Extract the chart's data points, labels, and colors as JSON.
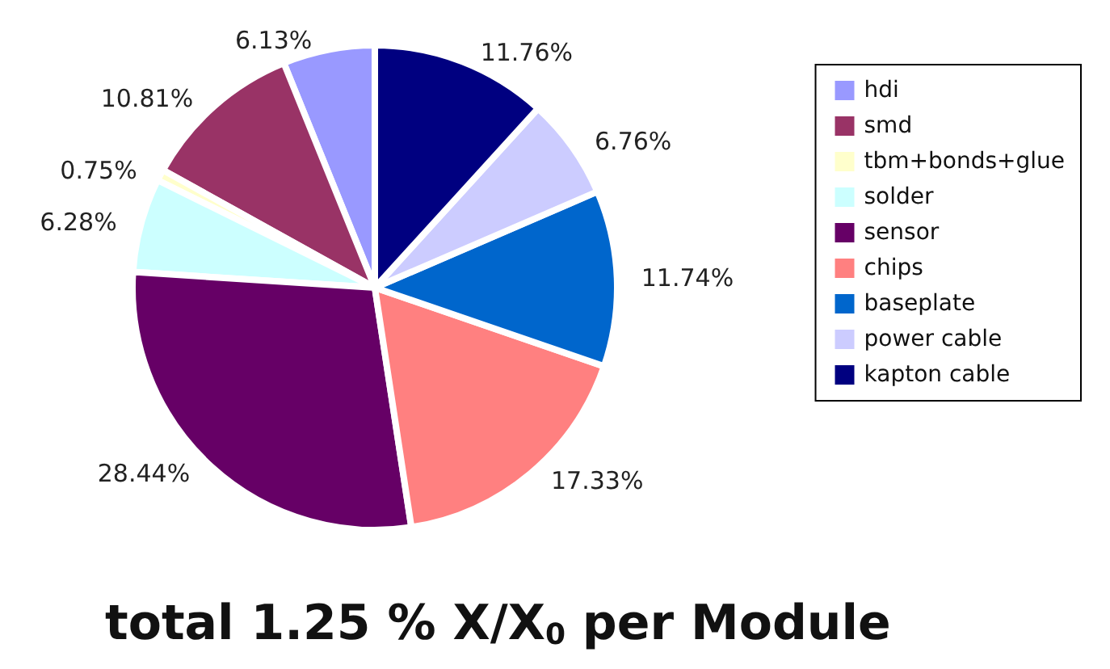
{
  "chart_data": {
    "type": "pie",
    "title": "total 1.25 % X/X$_{0}$ per Module",
    "categories": [
      "hdi",
      "smd",
      "tbm+bonds+glue",
      "solder",
      "sensor",
      "chips",
      "baseplate",
      "power cable",
      "kapton cable"
    ],
    "values": [
      6.13,
      10.81,
      0.75,
      6.28,
      28.44,
      17.33,
      11.74,
      6.76,
      11.76
    ],
    "value_labels": [
      "6.13%",
      "10.81%",
      "0.75%",
      "6.28%",
      "28.44%",
      "17.33%",
      "11.74%",
      "6.76%",
      "11.76%"
    ],
    "colors": [
      "#9999ff",
      "#993366",
      "#ffffcc",
      "#ccffff",
      "#660066",
      "#ff8080",
      "#0066cc",
      "#ccccff",
      "#000080"
    ],
    "legend": "right"
  }
}
